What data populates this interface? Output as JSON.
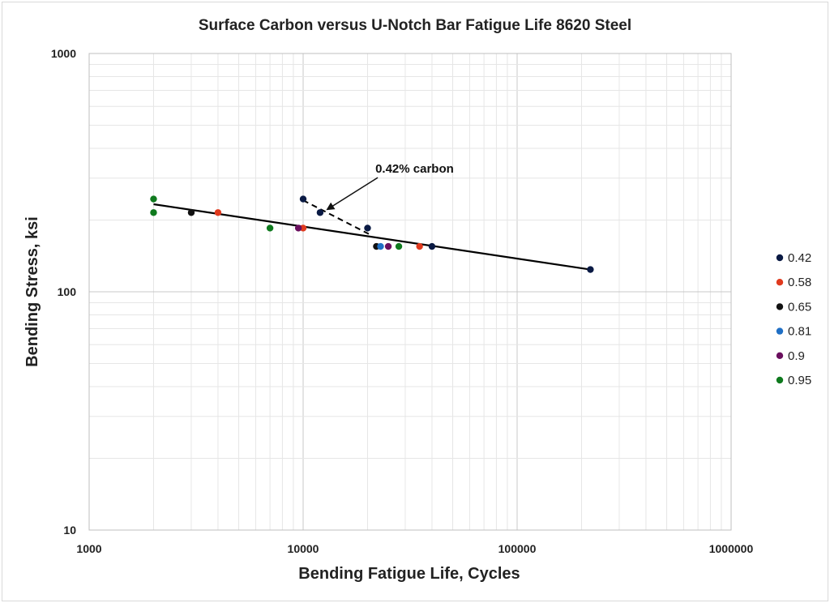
{
  "chart_data": {
    "type": "scatter",
    "title": "Surface Carbon versus U-Notch Bar Fatigue Life 8620 Steel",
    "xlabel": "Bending Fatigue Life, Cycles",
    "ylabel": "Bending Stress, ksi",
    "xscale": "log",
    "yscale": "log",
    "xlim": [
      1000,
      1000000
    ],
    "ylim": [
      10,
      1000
    ],
    "x_ticks": [
      "1000",
      "10000",
      "100000",
      "1000000"
    ],
    "y_ticks": [
      "10",
      "100",
      "1000"
    ],
    "grid": true,
    "legend_position": "right",
    "series": [
      {
        "name": "0.42",
        "color": "#0a1a44",
        "points": [
          [
            10000,
            245
          ],
          [
            12000,
            215
          ],
          [
            20000,
            185
          ],
          [
            40000,
            155
          ],
          [
            220000,
            124
          ]
        ]
      },
      {
        "name": "0.58",
        "color": "#e03a1e",
        "points": [
          [
            4000,
            215
          ],
          [
            10000,
            185
          ],
          [
            35000,
            155
          ]
        ]
      },
      {
        "name": "0.65",
        "color": "#111111",
        "points": [
          [
            3000,
            215
          ],
          [
            22000,
            155
          ]
        ]
      },
      {
        "name": "0.81",
        "color": "#1f6fc5",
        "points": [
          [
            23000,
            155
          ]
        ]
      },
      {
        "name": "0.9",
        "color": "#6a0f5e",
        "points": [
          [
            9500,
            185
          ],
          [
            25000,
            155
          ]
        ]
      },
      {
        "name": "0.95",
        "color": "#0f7a1e",
        "points": [
          [
            2000,
            245
          ],
          [
            2000,
            215
          ],
          [
            7000,
            185
          ],
          [
            28000,
            155
          ]
        ]
      }
    ],
    "trendline": {
      "from": [
        2000,
        233
      ],
      "to": [
        220000,
        124
      ],
      "color": "#000000"
    },
    "dashed_line": {
      "from": [
        10000,
        242
      ],
      "to": [
        21000,
        172
      ],
      "color": "#000000"
    },
    "annotation": {
      "text": "0.42% carbon",
      "arrow_to": [
        13000,
        222
      ]
    }
  }
}
